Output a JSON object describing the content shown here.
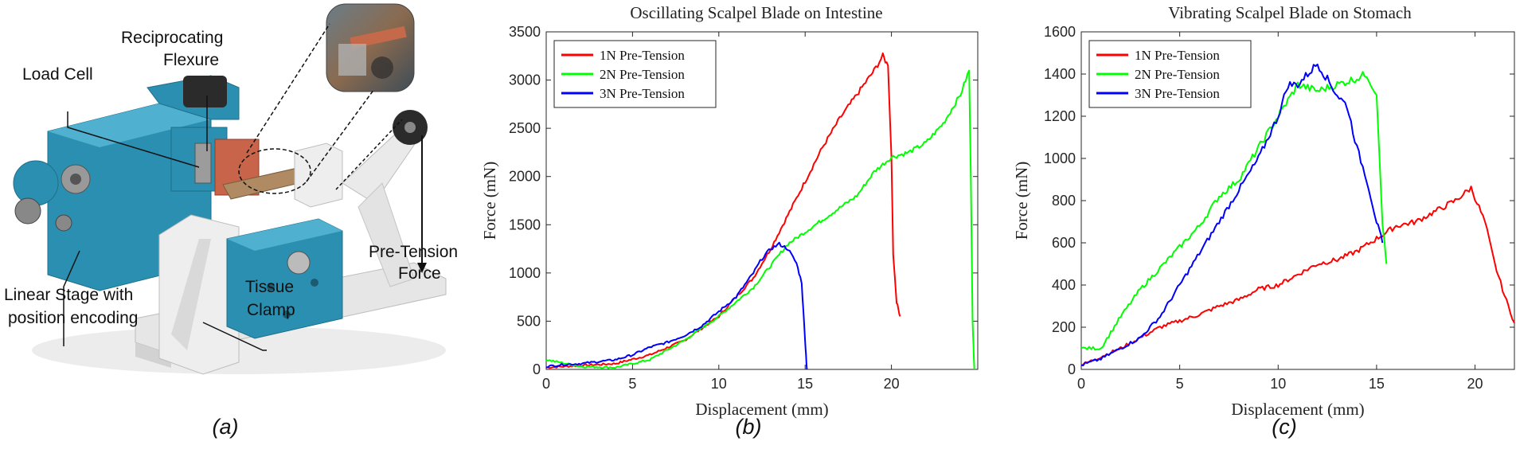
{
  "panel_a": {
    "caption": "(a)",
    "labels": {
      "reciprocating_flexure": [
        "Reciprocating",
        "Flexure"
      ],
      "load_cell": "Load Cell",
      "linear_stage": [
        "Linear Stage with",
        "position encoding"
      ],
      "tissue_clamp": [
        "Tissue",
        "Clamp"
      ],
      "pre_tension": [
        "Pre-Tension",
        "Force"
      ]
    },
    "colors": {
      "blue": "#2a8fb0",
      "blue_dark": "#1f6f8a",
      "white_part": "#e9e9e9",
      "copper": "#c8644a",
      "wood": "#b08a62"
    }
  },
  "chart_data": [
    {
      "type": "line",
      "caption": "(b)",
      "title": "Oscillating Scalpel Blade on Intestine",
      "xlabel": "Displacement (mm)",
      "ylabel": "Force (mN)",
      "xlim": [
        0,
        25
      ],
      "ylim": [
        0,
        3500
      ],
      "xticks": [
        0,
        5,
        10,
        15,
        20
      ],
      "yticks": [
        0,
        500,
        1000,
        1500,
        2000,
        2500,
        3000,
        3500
      ],
      "legend": "top-left",
      "series": [
        {
          "name": "1N Pre-Tension",
          "color": "#ff0000",
          "x": [
            0,
            2,
            4,
            6,
            8,
            10,
            12,
            13,
            14,
            15,
            16,
            17,
            18,
            19,
            19.5,
            19.8,
            20.0,
            20.1,
            20.3,
            20.5
          ],
          "y": [
            20,
            40,
            60,
            150,
            300,
            550,
            950,
            1250,
            1600,
            1950,
            2300,
            2600,
            2850,
            3100,
            3250,
            3150,
            2200,
            1200,
            700,
            550
          ]
        },
        {
          "name": "2N Pre-Tension",
          "color": "#00ff00",
          "x": [
            0,
            2,
            4,
            6,
            8,
            10,
            12,
            14,
            16,
            18,
            19,
            20,
            21,
            22,
            23,
            24,
            24.5,
            24.6,
            24.7,
            24.8
          ],
          "y": [
            100,
            30,
            20,
            100,
            300,
            550,
            850,
            1300,
            1550,
            1800,
            2050,
            2200,
            2250,
            2350,
            2550,
            2850,
            3100,
            2000,
            500,
            0
          ]
        },
        {
          "name": "3N Pre-Tension",
          "color": "#0000ff",
          "x": [
            0,
            1,
            2,
            3,
            4,
            5,
            6,
            7,
            8,
            9,
            10,
            11,
            12,
            12.5,
            13,
            13.5,
            14,
            14.5,
            14.8,
            15,
            15.1
          ],
          "y": [
            30,
            50,
            60,
            80,
            100,
            150,
            230,
            280,
            350,
            450,
            600,
            750,
            1000,
            1150,
            1250,
            1300,
            1250,
            1100,
            900,
            300,
            0
          ]
        }
      ]
    },
    {
      "type": "line",
      "caption": "(c)",
      "title": "Vibrating Scalpel Blade on Stomach",
      "xlabel": "Displacement (mm)",
      "ylabel": "Force (mN)",
      "xlim": [
        0,
        22
      ],
      "ylim": [
        0,
        1600
      ],
      "xticks": [
        0,
        5,
        10,
        15,
        20
      ],
      "yticks": [
        0,
        200,
        400,
        600,
        800,
        1000,
        1200,
        1400,
        1600
      ],
      "legend": "top-left",
      "series": [
        {
          "name": "1N Pre-Tension",
          "color": "#ff0000",
          "x": [
            0,
            1,
            2,
            3,
            4,
            5,
            6,
            7,
            8,
            9,
            10,
            11,
            12,
            13,
            14,
            15,
            16,
            17,
            18,
            19,
            19.8,
            20.5,
            21,
            21.5,
            22
          ],
          "y": [
            20,
            60,
            100,
            150,
            200,
            230,
            260,
            300,
            330,
            380,
            400,
            450,
            500,
            520,
            560,
            620,
            680,
            700,
            750,
            800,
            860,
            700,
            500,
            350,
            220
          ]
        },
        {
          "name": "2N Pre-Tension",
          "color": "#00ff00",
          "x": [
            0,
            1,
            2,
            3,
            4,
            5,
            6,
            7,
            8,
            9,
            10,
            11,
            12,
            13,
            14,
            14.5,
            15,
            15.3,
            15.5
          ],
          "y": [
            100,
            100,
            250,
            380,
            480,
            580,
            680,
            820,
            900,
            1050,
            1200,
            1350,
            1320,
            1350,
            1380,
            1400,
            1300,
            700,
            500
          ]
        },
        {
          "name": "3N Pre-Tension",
          "color": "#0000ff",
          "x": [
            0,
            1,
            2,
            3,
            4,
            5,
            6,
            7,
            8,
            9,
            10,
            10.5,
            11,
            12,
            13,
            13.5,
            14,
            14.5,
            15,
            15.3
          ],
          "y": [
            20,
            50,
            100,
            150,
            250,
            400,
            550,
            700,
            850,
            1000,
            1200,
            1350,
            1350,
            1450,
            1300,
            1250,
            1050,
            900,
            700,
            600
          ]
        }
      ]
    }
  ]
}
